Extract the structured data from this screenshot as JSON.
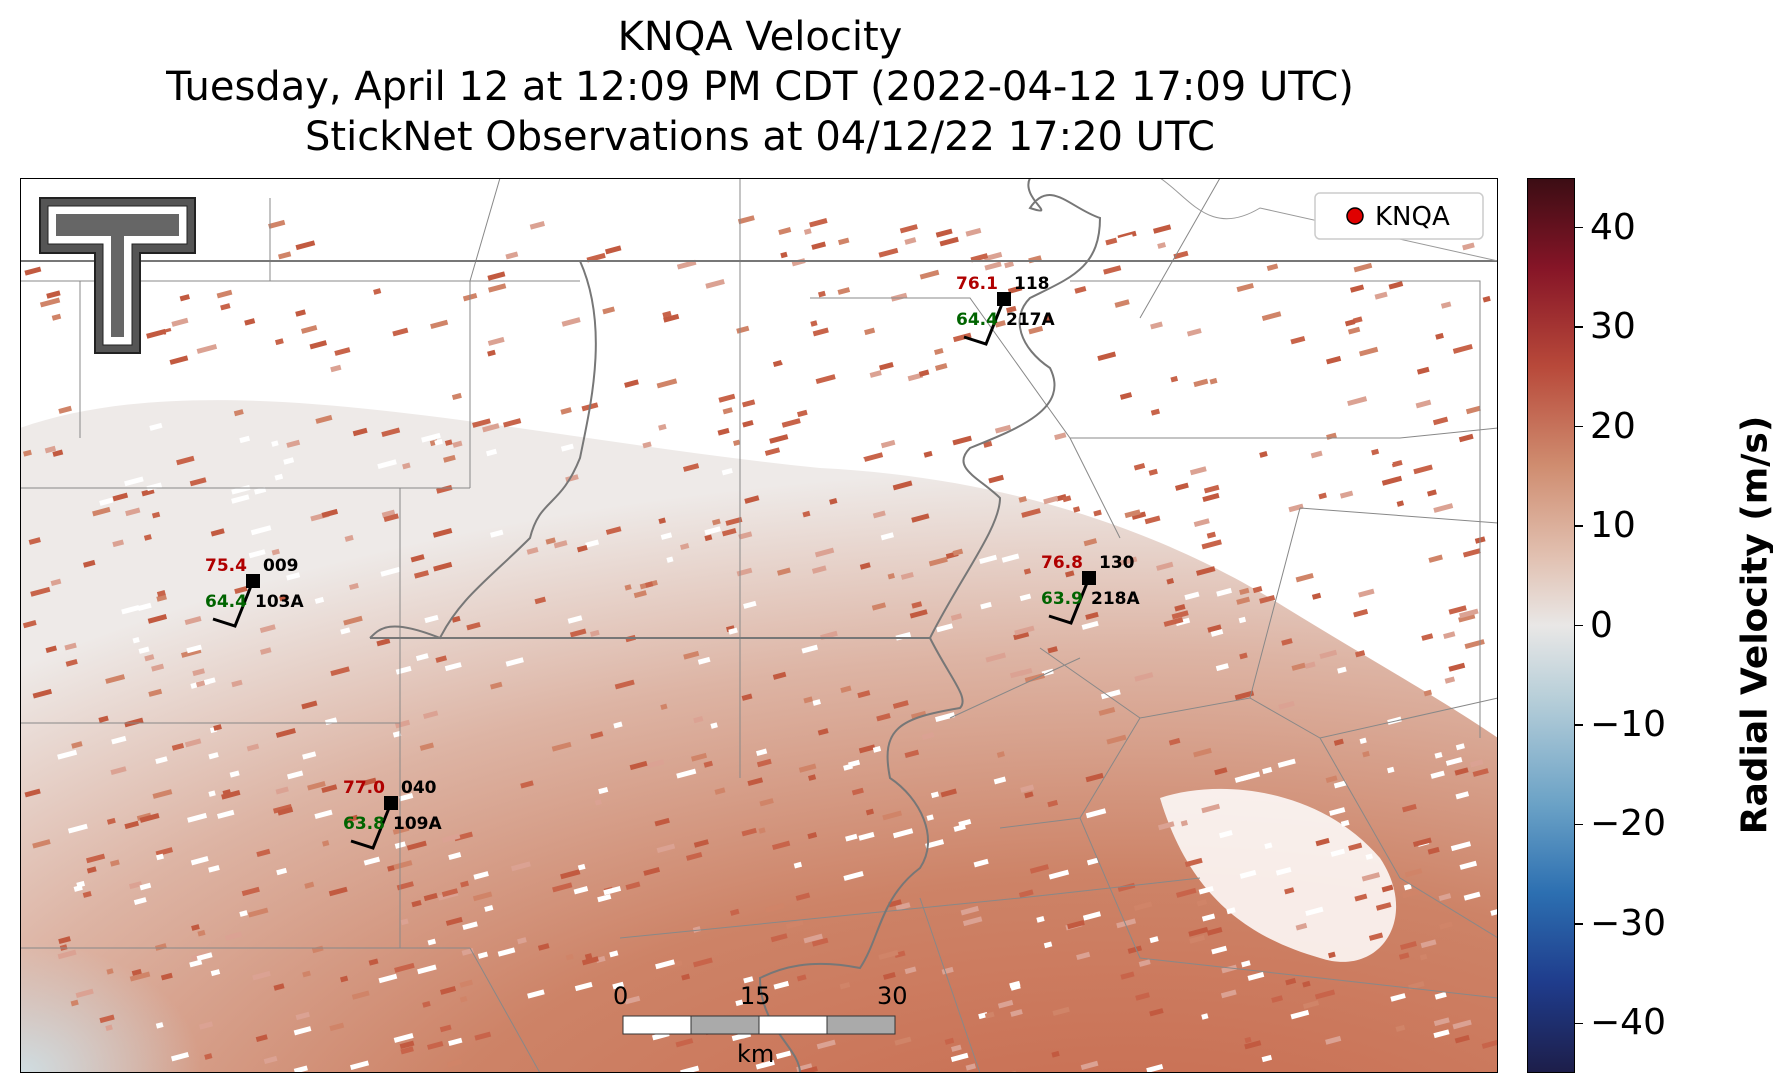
{
  "title": {
    "line1": "KNQA Velocity",
    "line2": "Tuesday, April 12 at 12:09 PM CDT (2022-04-12 17:09 UTC)",
    "line3": "StickNet Observations at 04/12/22 17:20 UTC"
  },
  "legend": {
    "label": "KNQA",
    "marker_color": "#e00000"
  },
  "colorbar": {
    "label": "Radial Velocity (m/s)",
    "range": [
      -45,
      45
    ],
    "ticks": [
      40,
      30,
      20,
      10,
      0,
      -10,
      -20,
      -30,
      -40
    ],
    "tick_labels": [
      "40",
      "30",
      "20",
      "10",
      "0",
      "−10",
      "−20",
      "−30",
      "−40"
    ]
  },
  "scalebar": {
    "labels": [
      "0",
      "15",
      "30"
    ],
    "unit": "km"
  },
  "stations": [
    {
      "id": "103A",
      "temp": "75.4",
      "dew": "64.4",
      "pressure": "009"
    },
    {
      "id": "109A",
      "temp": "77.0",
      "dew": "63.8",
      "pressure": "040"
    },
    {
      "id": "217A",
      "temp": "76.1",
      "dew": "64.4",
      "pressure": "118"
    },
    {
      "id": "218A",
      "temp": "76.8",
      "dew": "63.9",
      "pressure": "130"
    }
  ],
  "logo": {
    "name": "texas-tech-double-t-logo"
  },
  "colors": {
    "temp": "#b00000",
    "dew": "#006400",
    "velocity_accent": "#c8644a"
  }
}
